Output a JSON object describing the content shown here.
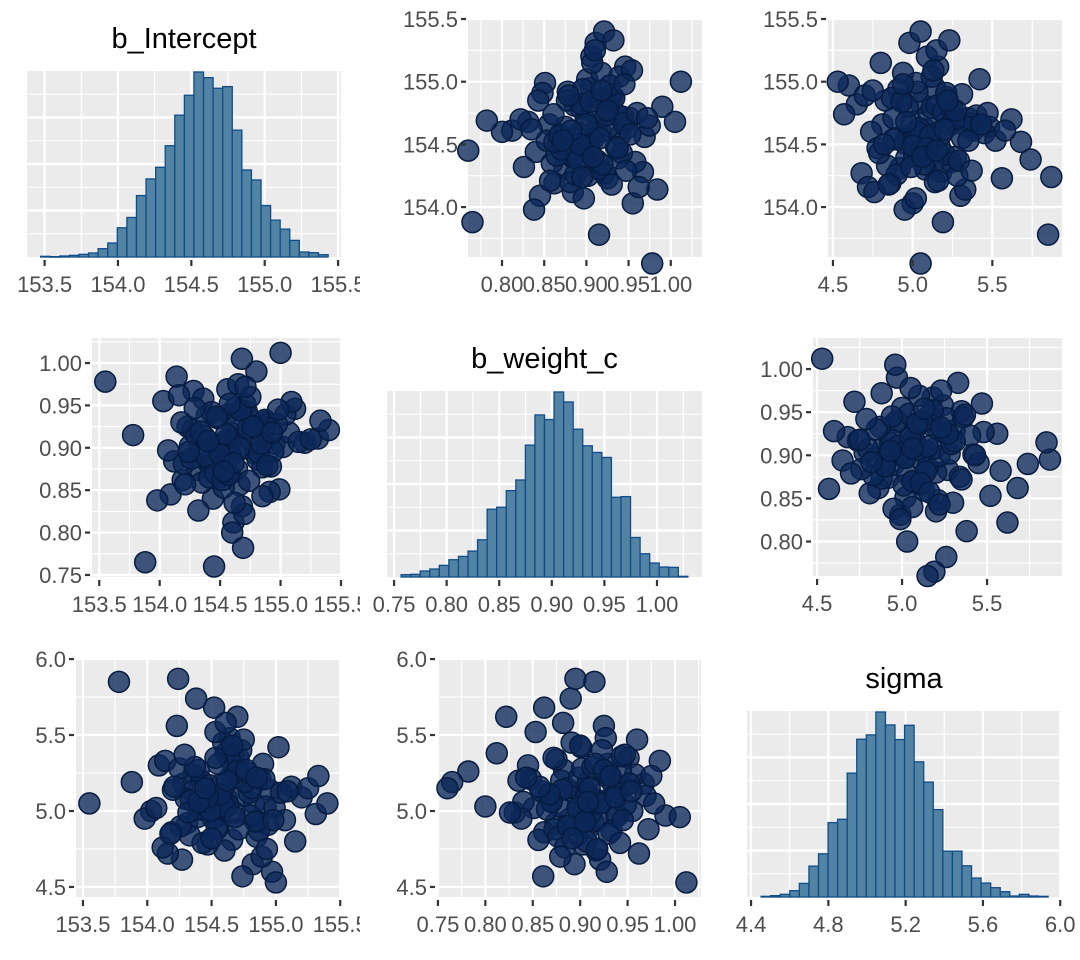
{
  "chart_data": {
    "type": "scatter-matrix",
    "variables": [
      "b_Intercept",
      "b_weight_c",
      "sigma"
    ],
    "colors": {
      "panel_bg": "#EBEBEB",
      "grid": "#FFFFFF",
      "point_fill": "#0B2858",
      "point_stroke": "#061B40",
      "bar_fill": "#5283A3",
      "bar_stroke": "#0F4C8A"
    },
    "grid": true,
    "draws": {
      "b_Intercept": [
        154.62,
        154.31,
        154.88,
        154.45,
        154.71,
        154.19,
        154.95,
        154.57,
        154.4,
        154.83,
        154.66,
        154.28,
        155.02,
        154.51,
        154.74,
        154.09,
        154.6,
        154.92,
        154.36,
        154.55,
        154.79,
        154.23,
        154.68,
        155.12,
        154.47,
        154.58,
        154.14,
        154.86,
        154.42,
        154.64,
        154.99,
        154.33,
        154.72,
        154.5,
        154.27,
        155.2,
        154.61,
        154.39,
        154.81,
        154.03,
        154.69,
        154.54,
        154.9,
        154.44,
        154.16,
        154.76,
        154.59,
        155.07,
        154.35,
        154.63,
        154.25,
        154.85,
        154.48,
        154.7,
        155.31,
        154.56,
        154.12,
        154.78,
        154.41,
        154.67,
        154.94,
        154.3,
        154.53,
        154.87,
        154.2,
        154.65,
        155.15,
        154.46,
        154.73,
        153.98,
        154.58,
        154.82,
        154.37,
        154.6,
        155.04,
        154.26,
        154.75,
        154.49,
        154.91,
        154.18,
        154.64,
        154.34,
        154.8,
        154.52,
        155.25,
        154.43,
        154.69,
        154.07,
        154.97,
        154.57,
        154.29,
        154.84,
        154.62,
        155.4,
        154.38,
        154.71,
        154.21,
        154.55,
        154.89,
        154.47,
        154.66,
        154.32,
        155.09,
        154.5,
        154.77,
        153.88,
        154.61,
        154.98,
        154.4,
        154.74,
        155.33,
        154.24,
        154.68,
        154.53,
        154.93,
        153.55,
        154.45,
        155.0,
        154.85,
        153.78
      ],
      "b_weight_c": [
        0.912,
        0.874,
        0.931,
        0.898,
        0.951,
        0.862,
        0.905,
        0.94,
        0.883,
        0.92,
        0.856,
        0.967,
        0.901,
        0.889,
        0.936,
        0.845,
        0.917,
        0.878,
        0.958,
        0.909,
        0.893,
        0.925,
        0.831,
        0.946,
        0.903,
        0.869,
        0.984,
        0.914,
        0.88,
        0.927,
        0.851,
        0.897,
        0.943,
        0.866,
        0.921,
        0.906,
        0.812,
        0.938,
        0.886,
        0.955,
        0.899,
        0.873,
        0.929,
        0.84,
        0.962,
        0.908,
        0.891,
        0.918,
        0.859,
        0.948,
        0.902,
        0.877,
        0.935,
        0.822,
        0.911,
        0.969,
        0.884,
        0.926,
        0.865,
        0.944,
        0.896,
        0.915,
        0.853,
        0.933,
        0.881,
        0.975,
        0.907,
        0.87,
        0.923,
        0.838,
        0.952,
        0.894,
        0.913,
        0.8,
        0.939,
        0.887,
        0.96,
        0.903,
        0.848,
        0.93,
        0.875,
        0.919,
        0.99,
        0.862,
        0.91,
        0.942,
        0.782,
        0.897,
        0.928,
        0.868,
        0.947,
        0.905,
        0.835,
        0.921,
        0.89,
        0.972,
        0.857,
        0.916,
        0.879,
        0.937,
        0.9,
        0.826,
        0.954,
        0.892,
        0.925,
        0.765,
        0.882,
        0.945,
        0.908,
        0.861,
        0.932,
        0.895,
        1.005,
        0.872,
        0.918,
        0.978,
        0.76,
        1.012,
        0.843,
        0.915
      ],
      "sigma": [
        5.08,
        4.92,
        5.21,
        5.01,
        5.35,
        4.86,
        5.14,
        4.97,
        5.27,
        5.05,
        4.81,
        5.18,
        5.42,
        4.95,
        5.1,
        5.3,
        4.74,
        5.03,
        5.24,
        4.89,
        5.12,
        5.56,
        4.99,
        5.16,
        4.78,
        5.07,
        5.33,
        4.93,
        5.2,
        5.48,
        5.02,
        4.84,
        5.26,
        5.11,
        4.68,
        5.09,
        5.38,
        4.96,
        5.15,
        5.0,
        5.22,
        4.88,
        5.31,
        5.06,
        4.72,
        5.19,
        5.45,
        4.94,
        5.13,
        5.04,
        5.28,
        4.83,
        5.17,
        5.62,
        4.98,
        5.1,
        4.76,
        5.25,
        5.01,
        5.36,
        4.91,
        5.08,
        5.52,
        4.87,
        5.14,
        5.23,
        4.8,
        5.06,
        5.4,
        4.95,
        5.18,
        4.65,
        5.29,
        5.03,
        5.12,
        4.9,
        5.47,
        5.0,
        5.21,
        4.85,
        5.34,
        5.07,
        4.97,
        5.68,
        5.15,
        4.79,
        5.26,
        5.02,
        4.6,
        5.11,
        5.37,
        4.93,
        5.2,
        5.05,
        5.74,
        4.88,
        5.16,
        5.31,
        4.7,
        5.09,
        5.43,
        4.99,
        5.13,
        4.82,
        5.27,
        5.19,
        5.58,
        4.94,
        5.06,
        4.57,
        5.23,
        5.87,
        4.96,
        5.35,
        4.75,
        5.05,
        5.15,
        4.53,
        5.22,
        5.85
      ]
    },
    "panels": [
      {
        "row": 0,
        "col": 0,
        "type": "histogram",
        "title": "b_Intercept",
        "x": "b_Intercept",
        "xlim": [
          153.38,
          155.52
        ],
        "ylim": [
          0,
          560
        ],
        "bin_start": 153.473,
        "bin_width": 0.0653,
        "counts": [
          2,
          1,
          3,
          5,
          8,
          12,
          25,
          42,
          88,
          119,
          185,
          235,
          270,
          335,
          427,
          487,
          557,
          540,
          508,
          513,
          382,
          262,
          232,
          155,
          111,
          84,
          50,
          15,
          13,
          7
        ],
        "xticks": [
          "153.5",
          "154.0",
          "154.5",
          "155.0",
          "155.5"
        ],
        "yticks": []
      },
      {
        "row": 0,
        "col": 1,
        "type": "scatter",
        "x": "b_weight_c",
        "y": "b_Intercept",
        "xlim": [
          0.7597,
          1.037
        ],
        "ylim": [
          153.602,
          155.508
        ],
        "xticks": [
          "0.80",
          "0.85",
          "0.90",
          "0.95",
          "1.00"
        ],
        "yticks": [
          "154.0",
          "154.5",
          "155.0",
          "155.5"
        ]
      },
      {
        "row": 0,
        "col": 2,
        "type": "scatter",
        "x": "sigma",
        "y": "b_Intercept",
        "xlim": [
          4.469,
          5.937
        ],
        "ylim": [
          153.602,
          155.508
        ],
        "xticks": [
          "4.5",
          "5.0",
          "5.5"
        ],
        "yticks": [
          "154.0",
          "154.5",
          "155.0",
          "155.5"
        ]
      },
      {
        "row": 1,
        "col": 0,
        "type": "scatter",
        "x": "b_Intercept",
        "y": "b_weight_c",
        "xlim": [
          153.44,
          155.5
        ],
        "ylim": [
          0.7476,
          1.0295
        ],
        "xticks": [
          "153.5",
          "154.0",
          "154.5",
          "155.0",
          "155.5"
        ],
        "yticks": [
          "0.75",
          "0.80",
          "0.85",
          "0.90",
          "0.95",
          "1.00"
        ]
      },
      {
        "row": 1,
        "col": 1,
        "type": "histogram",
        "title": "b_weight_c",
        "x": "b_weight_c",
        "xlim": [
          0.7433,
          1.0428
        ],
        "ylim": [
          0,
          560
        ],
        "bin_start": 0.7567,
        "bin_width": 0.00909,
        "counts": [
          7,
          8,
          18,
          24,
          35,
          52,
          62,
          78,
          112,
          204,
          210,
          260,
          292,
          397,
          488,
          474,
          557,
          527,
          445,
          395,
          375,
          360,
          240,
          242,
          119,
          70,
          42,
          30,
          29,
          2
        ],
        "xticks": [
          "0.75",
          "0.80",
          "0.85",
          "0.90",
          "0.95",
          "1.00"
        ],
        "yticks": []
      },
      {
        "row": 1,
        "col": 2,
        "type": "scatter",
        "x": "sigma",
        "y": "b_weight_c",
        "xlim": [
          4.476,
          5.941
        ],
        "ylim": [
          0.76,
          1.036
        ],
        "xticks": [
          "4.5",
          "5.0",
          "5.5"
        ],
        "yticks": [
          "0.80",
          "0.85",
          "0.90",
          "0.95",
          "1.00"
        ]
      },
      {
        "row": 2,
        "col": 0,
        "type": "scatter",
        "x": "b_Intercept",
        "y": "sigma",
        "xlim": [
          153.446,
          155.506
        ],
        "ylim": [
          4.434,
          6.007
        ],
        "xticks": [
          "153.5",
          "154.0",
          "154.5",
          "155.0",
          "155.5"
        ],
        "yticks": [
          "4.5",
          "5.0",
          "5.5",
          "6.0"
        ]
      },
      {
        "row": 2,
        "col": 1,
        "type": "scatter",
        "x": "b_weight_c",
        "y": "sigma",
        "xlim": [
          0.749,
          1.0274
        ],
        "ylim": [
          4.434,
          6.007
        ],
        "xticks": [
          "0.75",
          "0.80",
          "0.85",
          "0.90",
          "0.95",
          "1.00"
        ],
        "yticks": [
          "4.5",
          "5.0",
          "5.5",
          "6.0"
        ]
      },
      {
        "row": 2,
        "col": 2,
        "type": "histogram",
        "title": "sigma",
        "x": "sigma",
        "xlim": [
          4.379,
          6.004
        ],
        "ylim": [
          0,
          560
        ],
        "bin_start": 4.452,
        "bin_width": 0.0495,
        "counts": [
          2,
          4,
          8,
          19,
          41,
          93,
          130,
          224,
          234,
          373,
          475,
          488,
          557,
          518,
          474,
          517,
          407,
          346,
          263,
          138,
          138,
          94,
          57,
          42,
          28,
          16,
          3,
          8,
          3,
          2
        ],
        "xticks": [
          "4.4",
          "4.8",
          "5.2",
          "5.6",
          "6.0"
        ],
        "yticks": []
      }
    ]
  }
}
